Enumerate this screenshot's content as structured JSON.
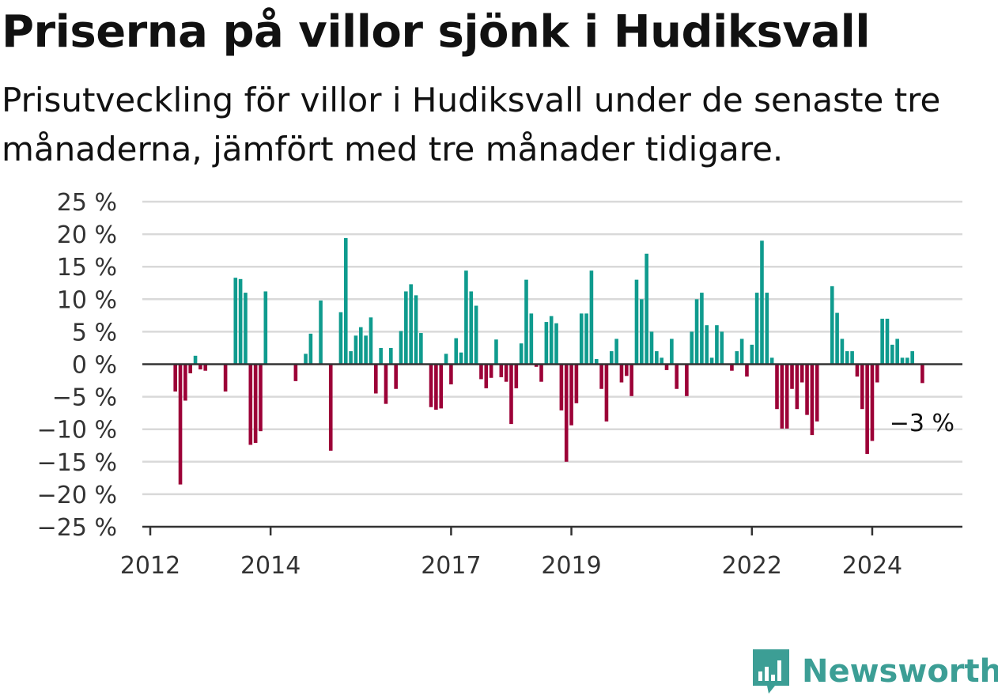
{
  "colors": {
    "positive": "#0f9b8e",
    "negative": "#9c0137",
    "grid": "#d9d9d9",
    "axis": "#333333",
    "brand": "#3c9e95"
  },
  "brand": {
    "name": "Newsworthy",
    "icon": "bar-chart-speech-bubble-icon"
  },
  "chart_data": {
    "type": "bar",
    "title": "Priserna på villor sjönk i Hudiksvall",
    "subtitle": "Prisutveckling för villor i Hudiksvall under de senaste tre månaderna, jämfört med tre månader tidigare.",
    "xlabel": "",
    "ylabel": "",
    "ylim": [
      -25,
      25
    ],
    "y_ticks": [
      25,
      20,
      15,
      10,
      5,
      0,
      -5,
      -10,
      -15,
      -20,
      -25
    ],
    "y_tick_labels": [
      "25 %",
      "20 %",
      "15 %",
      "10 %",
      "5 %",
      "0 %",
      "−5 %",
      "−10 %",
      "−15 %",
      "−20 %",
      "−25 %"
    ],
    "x_ticks": [
      {
        "label": "2012",
        "date": "2012-01"
      },
      {
        "label": "2014",
        "date": "2014-01"
      },
      {
        "label": "2017",
        "date": "2017-01"
      },
      {
        "label": "2019",
        "date": "2019-01"
      },
      {
        "label": "2022",
        "date": "2022-01"
      },
      {
        "label": "2024",
        "date": "2024-01"
      }
    ],
    "grid": true,
    "legend": "none",
    "series": [
      {
        "start": "2012-01",
        "frequency": "monthly",
        "values": [
          null,
          null,
          null,
          null,
          null,
          -4.2,
          -18.5,
          -5.6,
          -1.4,
          1.3,
          -0.8,
          -1.0,
          null,
          null,
          null,
          -4.2,
          null,
          13.3,
          13.1,
          11.0,
          -12.4,
          -12.1,
          -10.3,
          11.2,
          null,
          null,
          null,
          null,
          null,
          -2.6,
          null,
          1.6,
          4.7,
          null,
          9.8,
          null,
          -13.3,
          null,
          8.0,
          19.4,
          2.0,
          4.4,
          5.7,
          4.4,
          7.2,
          -4.5,
          2.5,
          -6.1,
          2.5,
          -3.8,
          5.1,
          11.2,
          12.3,
          10.6,
          4.8,
          null,
          -6.6,
          -7.0,
          -6.8,
          1.6,
          -3.1,
          4.0,
          1.8,
          14.4,
          11.2,
          9.0,
          -2.3,
          -3.7,
          -2.1,
          3.8,
          -2.0,
          -2.7,
          -9.2,
          -3.7,
          3.2,
          13.0,
          7.8,
          -0.4,
          -2.7,
          6.5,
          7.4,
          6.3,
          -7.1,
          -15.0,
          -9.4,
          -6.0,
          7.8,
          7.8,
          14.4,
          0.8,
          -3.8,
          -8.8,
          2.0,
          3.9,
          -2.8,
          -1.8,
          -4.9,
          13.0,
          10.0,
          17.0,
          5.0,
          2.0,
          1.0,
          -0.9,
          3.9,
          -3.8,
          null,
          -4.9,
          5.0,
          10.0,
          11.0,
          6.0,
          1.0,
          6.0,
          5.0,
          null,
          -1.0,
          2.0,
          3.9,
          -1.9,
          3.0,
          11.0,
          19.0,
          11.0,
          1.0,
          -6.9,
          -9.9,
          -9.9,
          -3.8,
          -6.9,
          -2.8,
          -7.8,
          -10.9,
          -8.8,
          null,
          null,
          12.0,
          7.9,
          3.9,
          2.0,
          2.0,
          -1.9,
          -6.9,
          -13.8,
          -11.8,
          -2.8,
          7.0,
          7.0,
          3.0,
          3.9,
          1.0,
          1.0,
          2.0,
          null,
          -2.9
        ]
      }
    ],
    "annotation": {
      "label": "−3 %",
      "value": -3
    }
  }
}
